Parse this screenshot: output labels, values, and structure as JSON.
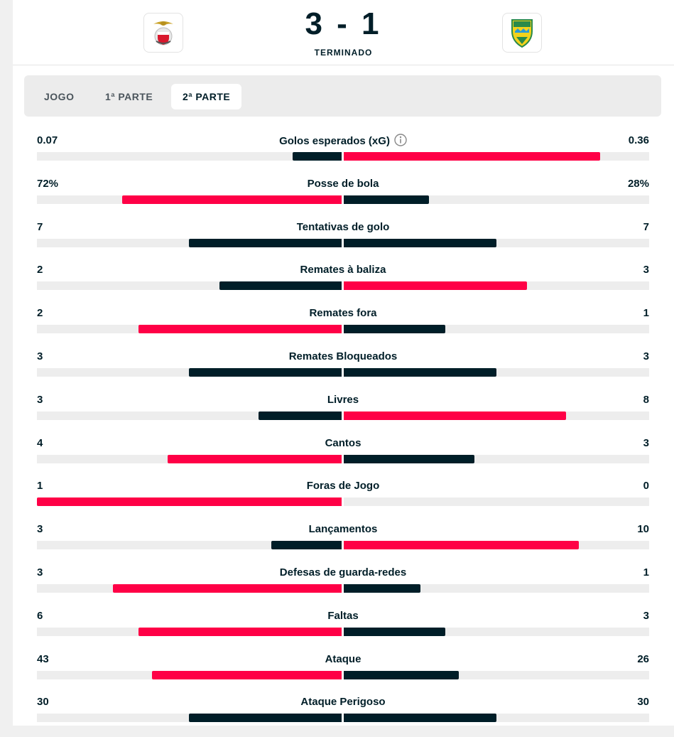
{
  "colors": {
    "better": "#ff0046",
    "worse": "#001e28",
    "track": "#ededed"
  },
  "header": {
    "home_logo": "benfica-crest-icon",
    "away_logo": "estoril-crest-icon",
    "score": "3 - 1",
    "status": "TERMINADO"
  },
  "tabs": [
    {
      "label": "JOGO",
      "active": false
    },
    {
      "label": "1ª PARTE",
      "active": false
    },
    {
      "label": "2ª PARTE",
      "active": true
    }
  ],
  "stats": [
    {
      "label": "Golos esperados (xG)",
      "home": "0.07",
      "away": "0.36",
      "home_fill": 0.16,
      "away_fill": 0.84,
      "info_icon": "info-icon"
    },
    {
      "label": "Posse de bola",
      "home": "72%",
      "away": "28%",
      "home_fill": 0.72,
      "away_fill": 0.28
    },
    {
      "label": "Tentativas de golo",
      "home": "7",
      "away": "7",
      "home_fill": 0.5,
      "away_fill": 0.5
    },
    {
      "label": "Remates à baliza",
      "home": "2",
      "away": "3",
      "home_fill": 0.4,
      "away_fill": 0.6
    },
    {
      "label": "Remates fora",
      "home": "2",
      "away": "1",
      "home_fill": 0.6667,
      "away_fill": 0.3333
    },
    {
      "label": "Remates Bloqueados",
      "home": "3",
      "away": "3",
      "home_fill": 0.5,
      "away_fill": 0.5
    },
    {
      "label": "Livres",
      "home": "3",
      "away": "8",
      "home_fill": 0.2727,
      "away_fill": 0.7273
    },
    {
      "label": "Cantos",
      "home": "4",
      "away": "3",
      "home_fill": 0.5714,
      "away_fill": 0.4286
    },
    {
      "label": "Foras de Jogo",
      "home": "1",
      "away": "0",
      "home_fill": 1.0,
      "away_fill": 0.0
    },
    {
      "label": "Lançamentos",
      "home": "3",
      "away": "10",
      "home_fill": 0.2308,
      "away_fill": 0.7692
    },
    {
      "label": "Defesas de guarda-redes",
      "home": "3",
      "away": "1",
      "home_fill": 0.75,
      "away_fill": 0.25
    },
    {
      "label": "Faltas",
      "home": "6",
      "away": "3",
      "home_fill": 0.6667,
      "away_fill": 0.3333
    },
    {
      "label": "Ataque",
      "home": "43",
      "away": "26",
      "home_fill": 0.6232,
      "away_fill": 0.3768
    },
    {
      "label": "Ataque Perigoso",
      "home": "30",
      "away": "30",
      "home_fill": 0.5,
      "away_fill": 0.5
    }
  ]
}
